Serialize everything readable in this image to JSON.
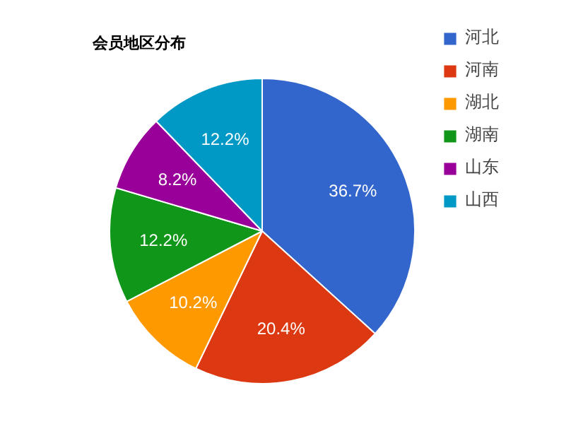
{
  "chart_data": {
    "type": "pie",
    "title": "会员地区分布",
    "categories": [
      "河北",
      "河南",
      "湖北",
      "湖南",
      "山东",
      "山西"
    ],
    "values": [
      36.7,
      20.4,
      10.2,
      12.2,
      8.2,
      12.2
    ],
    "colors": [
      "#3366cc",
      "#dc3912",
      "#ff9900",
      "#109618",
      "#990099",
      "#0099c6"
    ],
    "value_labels": [
      "36.7%",
      "20.4%",
      "10.2%",
      "12.2%",
      "8.2%",
      "12.2%"
    ],
    "legend": "right"
  }
}
